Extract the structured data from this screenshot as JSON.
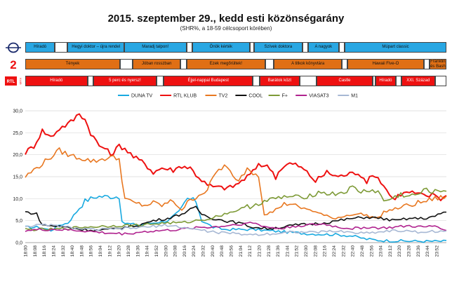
{
  "header": {
    "title": "2015. szeptember 29., kedd esti közönségarány",
    "subtitle": "(SHR%, a 18-59 célcsoport körében)"
  },
  "logos": {
    "duna": {
      "icon": "duna-logo-icon",
      "color": "#1a2a6c"
    },
    "tv2": {
      "icon": "tv2-logo-icon",
      "text": "2",
      "color": "#ee1111"
    },
    "rtl": {
      "icon": "rtl-klub-logo-icon",
      "text": "RTL",
      "subtext": "KLUB",
      "color": "#ee1111"
    }
  },
  "schedule": {
    "duna": [
      {
        "label": "Híradó",
        "start": 0,
        "end": 10.5
      },
      {
        "label": "",
        "start": 10.5,
        "end": 15
      },
      {
        "label": "Hegyi doktor – újra rendel",
        "start": 15,
        "end": 35
      },
      {
        "label": "Maradj talpon!",
        "start": 35,
        "end": 57
      },
      {
        "label": "",
        "start": 57,
        "end": 59
      },
      {
        "label": "Önök kérték",
        "start": 59,
        "end": 79.5
      },
      {
        "label": "",
        "start": 79.5,
        "end": 81
      },
      {
        "label": "Szívek doktora",
        "start": 81,
        "end": 98
      },
      {
        "label": "",
        "start": 98,
        "end": 100
      },
      {
        "label": "A nagyok",
        "start": 100,
        "end": 111
      },
      {
        "label": "",
        "start": 111,
        "end": 113
      },
      {
        "label": "Múpart classic",
        "start": 113,
        "end": 149
      }
    ],
    "tv2": [
      {
        "label": "Tények",
        "start": 0,
        "end": 33.5
      },
      {
        "label": "",
        "start": 33.5,
        "end": 38
      },
      {
        "label": "Jóban rosszban",
        "start": 38,
        "end": 55
      },
      {
        "label": "",
        "start": 55,
        "end": 57
      },
      {
        "label": "Ezek megőrültek!",
        "start": 57,
        "end": 85
      },
      {
        "label": "",
        "start": 85,
        "end": 88
      },
      {
        "label": "A titkok könyvtára",
        "start": 88,
        "end": 112
      },
      {
        "label": "",
        "start": 112,
        "end": 114
      },
      {
        "label": "Hawaii Five-O",
        "start": 114,
        "end": 141
      },
      {
        "label": "",
        "start": 141,
        "end": 143
      },
      {
        "label": "Franklin és Bash",
        "start": 143,
        "end": 149
      }
    ],
    "rtl": [
      {
        "label": "Híradó",
        "start": 0,
        "end": 22
      },
      {
        "label": "",
        "start": 22,
        "end": 24
      },
      {
        "label": "5 perc és nyersz!",
        "start": 24,
        "end": 46.5
      },
      {
        "label": "",
        "start": 46.5,
        "end": 49
      },
      {
        "label": "Éjjel-nappal Budapest",
        "start": 49,
        "end": 80.5
      },
      {
        "label": "",
        "start": 80.5,
        "end": 83
      },
      {
        "label": "Barátok közt",
        "start": 83,
        "end": 97
      },
      {
        "label": "",
        "start": 97,
        "end": 103
      },
      {
        "label": "Castle",
        "start": 103,
        "end": 123
      },
      {
        "label": "",
        "start": 123,
        "end": 124
      },
      {
        "label": "Híradó",
        "start": 124,
        "end": 131
      },
      {
        "label": "",
        "start": 131,
        "end": 133
      },
      {
        "label": "XXI. Század",
        "start": 133,
        "end": 145
      },
      {
        "label": "",
        "start": 145,
        "end": 149
      }
    ]
  },
  "chart_data": {
    "type": "line",
    "ylim": [
      0,
      30
    ],
    "yticks": [
      "0,0",
      "5,0",
      "10,0",
      "15,0",
      "20,0",
      "25,0",
      "30,0"
    ],
    "xticks": [
      "18:00",
      "18:08",
      "18:16",
      "18:24",
      "18:32",
      "18:40",
      "18:48",
      "18:56",
      "19:04",
      "19:12",
      "19:20",
      "19:28",
      "19:36",
      "19:44",
      "19:52",
      "20:00",
      "20:08",
      "20:16",
      "20:24",
      "20:32",
      "20:40",
      "20:48",
      "20:56",
      "21:04",
      "21:12",
      "21:20",
      "21:28",
      "21:36",
      "21:44",
      "21:52",
      "22:00",
      "22:08",
      "22:16",
      "22:24",
      "22:32",
      "22:40",
      "22:48",
      "22:56",
      "23:04",
      "23:12",
      "23:20",
      "23:28",
      "23:36",
      "23:44",
      "23:52"
    ],
    "x_count": 149,
    "series": [
      {
        "name": "DUNA TV",
        "color": "#18a9e0",
        "keys": [
          [
            0,
            3.5
          ],
          [
            5,
            3.5
          ],
          [
            9,
            2.8
          ],
          [
            12,
            4
          ],
          [
            15,
            4.5
          ],
          [
            18,
            7
          ],
          [
            21,
            9.5
          ],
          [
            25,
            10.5
          ],
          [
            30,
            10.5
          ],
          [
            33,
            10.5
          ],
          [
            34,
            4.5
          ],
          [
            40,
            4
          ],
          [
            45,
            4.5
          ],
          [
            50,
            5
          ],
          [
            54,
            7
          ],
          [
            57,
            10
          ],
          [
            60,
            9.5
          ],
          [
            62,
            5
          ],
          [
            66,
            3.5
          ],
          [
            70,
            3
          ],
          [
            80,
            3
          ],
          [
            90,
            2.5
          ],
          [
            100,
            2
          ],
          [
            110,
            1.8
          ],
          [
            115,
            1.5
          ],
          [
            120,
            0.8
          ],
          [
            125,
            0.5
          ],
          [
            130,
            0.4
          ],
          [
            140,
            0.3
          ],
          [
            148,
            0.3
          ]
        ]
      },
      {
        "name": "RTL KLUB",
        "color": "#ee1111",
        "keys": [
          [
            0,
            20.5
          ],
          [
            3,
            22
          ],
          [
            6,
            25.5
          ],
          [
            9,
            24
          ],
          [
            12,
            26
          ],
          [
            15,
            27
          ],
          [
            17,
            28
          ],
          [
            19,
            29.5
          ],
          [
            21,
            28
          ],
          [
            23,
            25
          ],
          [
            26,
            22
          ],
          [
            28,
            21.5
          ],
          [
            30,
            20
          ],
          [
            33,
            22
          ],
          [
            35,
            21.5
          ],
          [
            38,
            19.5
          ],
          [
            42,
            18
          ],
          [
            45,
            16
          ],
          [
            48,
            17
          ],
          [
            52,
            16.5
          ],
          [
            55,
            17.5
          ],
          [
            58,
            17
          ],
          [
            60,
            15.5
          ],
          [
            64,
            13
          ],
          [
            68,
            12.5
          ],
          [
            72,
            12.5
          ],
          [
            75,
            13.5
          ],
          [
            78,
            15
          ],
          [
            80,
            16
          ],
          [
            82,
            18
          ],
          [
            84,
            17.5
          ],
          [
            86,
            17
          ],
          [
            88,
            15
          ],
          [
            90,
            17
          ],
          [
            93,
            18
          ],
          [
            96,
            17.5
          ],
          [
            99,
            16
          ],
          [
            102,
            14
          ],
          [
            106,
            16
          ],
          [
            110,
            15
          ],
          [
            113,
            15.5
          ],
          [
            117,
            16
          ],
          [
            120,
            14
          ],
          [
            123,
            15.5
          ],
          [
            126,
            13
          ],
          [
            129,
            10
          ],
          [
            132,
            11
          ],
          [
            135,
            11.5
          ],
          [
            138,
            11
          ],
          [
            141,
            10.5
          ],
          [
            144,
            11
          ],
          [
            146,
            10
          ],
          [
            148,
            10.5
          ]
        ]
      },
      {
        "name": "TV2",
        "color": "#e87720",
        "keys": [
          [
            0,
            15
          ],
          [
            3,
            16.5
          ],
          [
            6,
            18
          ],
          [
            9,
            19.5
          ],
          [
            12,
            21
          ],
          [
            15,
            20
          ],
          [
            18,
            19.5
          ],
          [
            21,
            19
          ],
          [
            24,
            18.5
          ],
          [
            27,
            19
          ],
          [
            30,
            19.5
          ],
          [
            33,
            19
          ],
          [
            35,
            10
          ],
          [
            38,
            9
          ],
          [
            42,
            8.5
          ],
          [
            45,
            9
          ],
          [
            48,
            8.5
          ],
          [
            52,
            9.5
          ],
          [
            55,
            7.5
          ],
          [
            57,
            9
          ],
          [
            60,
            10.5
          ],
          [
            64,
            12
          ],
          [
            67,
            16
          ],
          [
            70,
            17.5
          ],
          [
            72,
            16
          ],
          [
            74,
            14
          ],
          [
            76,
            15
          ],
          [
            78,
            17
          ],
          [
            80,
            16
          ],
          [
            82,
            15.5
          ],
          [
            84,
            6.5
          ],
          [
            87,
            7
          ],
          [
            90,
            8.5
          ],
          [
            93,
            9
          ],
          [
            96,
            8
          ],
          [
            100,
            7.5
          ],
          [
            104,
            6.5
          ],
          [
            108,
            5.5
          ],
          [
            112,
            6
          ],
          [
            115,
            6.5
          ],
          [
            118,
            6.5
          ],
          [
            121,
            6
          ],
          [
            124,
            5.5
          ],
          [
            126,
            7
          ],
          [
            129,
            7.5
          ],
          [
            132,
            8
          ],
          [
            135,
            8.5
          ],
          [
            138,
            9
          ],
          [
            141,
            9.5
          ],
          [
            144,
            10
          ],
          [
            148,
            10.5
          ]
        ]
      },
      {
        "name": "COOL",
        "color": "#111111",
        "keys": [
          [
            0,
            7
          ],
          [
            4,
            6.5
          ],
          [
            6,
            4
          ],
          [
            10,
            3.8
          ],
          [
            15,
            3.5
          ],
          [
            20,
            3
          ],
          [
            25,
            2.8
          ],
          [
            30,
            3
          ],
          [
            35,
            3.5
          ],
          [
            40,
            4
          ],
          [
            45,
            5
          ],
          [
            50,
            5.5
          ],
          [
            55,
            6.5
          ],
          [
            58,
            7.5
          ],
          [
            60,
            8
          ],
          [
            62,
            6.5
          ],
          [
            66,
            5.5
          ],
          [
            70,
            5
          ],
          [
            75,
            4.5
          ],
          [
            80,
            3.5
          ],
          [
            85,
            3.2
          ],
          [
            90,
            3.5
          ],
          [
            95,
            4
          ],
          [
            100,
            4.2
          ],
          [
            105,
            4.5
          ],
          [
            110,
            5
          ],
          [
            115,
            5.5
          ],
          [
            120,
            5.8
          ],
          [
            125,
            5.5
          ],
          [
            130,
            5
          ],
          [
            135,
            5.5
          ],
          [
            140,
            5.5
          ],
          [
            144,
            6
          ],
          [
            148,
            7
          ]
        ]
      },
      {
        "name": "F+",
        "color": "#7d9a36",
        "keys": [
          [
            0,
            3
          ],
          [
            10,
            3
          ],
          [
            20,
            3.5
          ],
          [
            30,
            3.8
          ],
          [
            40,
            4
          ],
          [
            50,
            4.5
          ],
          [
            55,
            4.5
          ],
          [
            60,
            5
          ],
          [
            65,
            5.5
          ],
          [
            70,
            6.5
          ],
          [
            75,
            7.5
          ],
          [
            80,
            8.5
          ],
          [
            82,
            9
          ],
          [
            85,
            9.5
          ],
          [
            88,
            10
          ],
          [
            92,
            10.5
          ],
          [
            96,
            10.2
          ],
          [
            100,
            10.8
          ],
          [
            104,
            11.5
          ],
          [
            108,
            11
          ],
          [
            112,
            11.5
          ],
          [
            115,
            12.5
          ],
          [
            118,
            11.5
          ],
          [
            121,
            12
          ],
          [
            124,
            11.5
          ],
          [
            126,
            9.5
          ],
          [
            129,
            10
          ],
          [
            132,
            11
          ],
          [
            135,
            10.5
          ],
          [
            138,
            11
          ],
          [
            141,
            12
          ],
          [
            144,
            11.5
          ],
          [
            148,
            12
          ]
        ]
      },
      {
        "name": "VIASAT3",
        "color": "#b0238f",
        "keys": [
          [
            0,
            2.8
          ],
          [
            10,
            3
          ],
          [
            20,
            2.7
          ],
          [
            28,
            2.2
          ],
          [
            35,
            2
          ],
          [
            42,
            2.5
          ],
          [
            50,
            2.8
          ],
          [
            55,
            3
          ],
          [
            60,
            3.5
          ],
          [
            65,
            3.5
          ],
          [
            70,
            3.8
          ],
          [
            75,
            4.2
          ],
          [
            80,
            4.5
          ],
          [
            85,
            3.5
          ],
          [
            90,
            3.2
          ],
          [
            95,
            3.8
          ],
          [
            100,
            4
          ],
          [
            105,
            4.2
          ],
          [
            110,
            3.5
          ],
          [
            115,
            3.2
          ],
          [
            120,
            3.5
          ],
          [
            125,
            3.3
          ],
          [
            130,
            3.5
          ],
          [
            135,
            3.8
          ],
          [
            140,
            3.5
          ],
          [
            144,
            3.8
          ],
          [
            148,
            3
          ]
        ]
      },
      {
        "name": "M1",
        "color": "#a7b8d4",
        "keys": [
          [
            0,
            3.8
          ],
          [
            8,
            4
          ],
          [
            15,
            3.5
          ],
          [
            22,
            3
          ],
          [
            28,
            3
          ],
          [
            35,
            3.2
          ],
          [
            42,
            3.5
          ],
          [
            50,
            4
          ],
          [
            55,
            3.5
          ],
          [
            60,
            3
          ],
          [
            65,
            2.5
          ],
          [
            70,
            2.2
          ],
          [
            75,
            2
          ],
          [
            80,
            1.8
          ],
          [
            85,
            2
          ],
          [
            90,
            2.2
          ],
          [
            95,
            2.5
          ],
          [
            100,
            2.3
          ],
          [
            105,
            2.5
          ],
          [
            110,
            2.6
          ],
          [
            115,
            2.3
          ],
          [
            120,
            2.2
          ],
          [
            125,
            2.5
          ],
          [
            130,
            2.8
          ],
          [
            135,
            2.5
          ],
          [
            140,
            2.4
          ],
          [
            144,
            2.6
          ],
          [
            148,
            2.4
          ]
        ]
      }
    ]
  }
}
